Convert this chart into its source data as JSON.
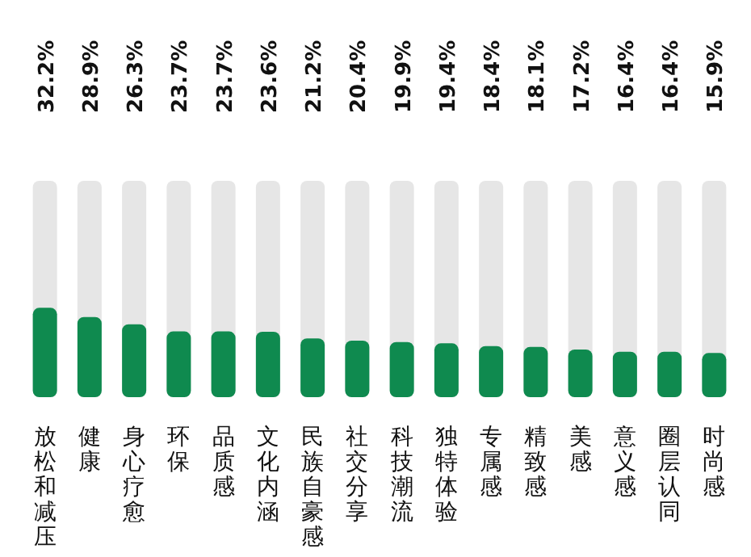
{
  "chart_data": {
    "type": "bar",
    "categories": [
      "放松和减压",
      "健康",
      "身心疗愈",
      "环保",
      "品质感",
      "文化内涵",
      "民族自豪感",
      "社交分享",
      "科技潮流",
      "独特体验",
      "专属感",
      "精致感",
      "美感",
      "意义感",
      "圈层认同",
      "时尚感"
    ],
    "values": [
      32.2,
      28.9,
      26.3,
      23.7,
      23.7,
      23.6,
      21.2,
      20.4,
      19.9,
      19.4,
      18.4,
      18.1,
      17.2,
      16.4,
      16.4,
      15.9
    ],
    "value_labels": [
      "32.2%",
      "28.9%",
      "26.3%",
      "23.7%",
      "23.7%",
      "23.6%",
      "21.2%",
      "20.4%",
      "19.9%",
      "19.4%",
      "18.4%",
      "18.1%",
      "17.2%",
      "16.4%",
      "16.4%",
      "15.9%"
    ],
    "color": "#0f8a4f",
    "ylim": [
      0,
      78
    ]
  }
}
